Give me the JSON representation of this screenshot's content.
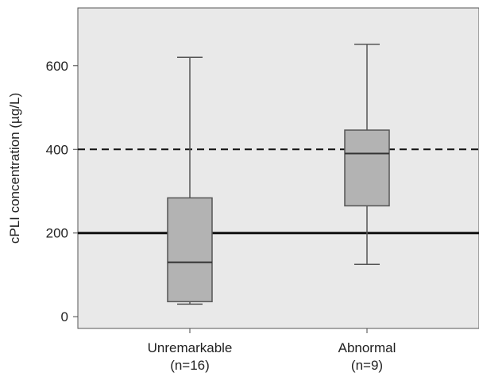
{
  "chart_data": {
    "type": "box",
    "ylabel": "cPLI concentration (µg/L)",
    "xlabel": "",
    "ylim": [
      -28,
      738
    ],
    "yticks": [
      0,
      200,
      400,
      600
    ],
    "categories": [
      {
        "line1": "Unremarkable",
        "line2": "(n=16)"
      },
      {
        "line1": "Abnormal",
        "line2": "(n=9)"
      }
    ],
    "boxes": [
      {
        "category": "Unremarkable",
        "min": 30,
        "q1": 36,
        "median": 130,
        "q3": 284,
        "max": 620
      },
      {
        "category": "Abnormal",
        "min": 125,
        "q1": 265,
        "median": 390,
        "q3": 446,
        "max": 651
      }
    ],
    "reference_lines": [
      {
        "value": 200,
        "style": "solid"
      },
      {
        "value": 400,
        "style": "dashed"
      }
    ],
    "colors": {
      "plot_background": "#e9e9e9",
      "box_fill": "#b3b3b3",
      "box_stroke": "#555555",
      "reference_line": "#111111"
    }
  }
}
